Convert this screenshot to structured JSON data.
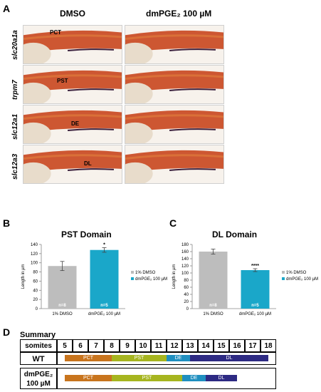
{
  "panelA": {
    "letter": "A",
    "col_dmso": "DMSO",
    "col_dmpge": "dmPGE₂ 100 µM",
    "rows": [
      {
        "gene": "slc20a1a",
        "left_label": "PCT",
        "right_label": ""
      },
      {
        "gene": "trpm7",
        "left_label": "PST",
        "right_label": ""
      },
      {
        "gene": "slc12a1",
        "left_label": "DE",
        "right_label": ""
      },
      {
        "gene": "slc12a3",
        "left_label": "DL",
        "right_label": ""
      }
    ]
  },
  "panelB": {
    "letter": "B",
    "chart_data": {
      "type": "bar",
      "title": "PST Domain",
      "ylabel": "Length in µm",
      "ylim": [
        0,
        140
      ],
      "yticks": [
        0,
        20,
        40,
        60,
        80,
        100,
        120,
        140
      ],
      "categories": [
        "1% DMSO",
        "dmPGE₂ 100 µM"
      ],
      "values": [
        93,
        128
      ],
      "errors": [
        10,
        5
      ],
      "n_labels": [
        "n=8",
        "n=5"
      ],
      "significance": [
        "",
        "*"
      ],
      "colors": [
        "#bdbdbd",
        "#1aa7c9"
      ],
      "legend": [
        "1% DMSO",
        "dmPGE₂ 100 µM"
      ]
    }
  },
  "panelC": {
    "letter": "C",
    "chart_data": {
      "type": "bar",
      "title": "DL Domain",
      "ylabel": "Length in µm",
      "ylim": [
        0,
        180
      ],
      "yticks": [
        0,
        20,
        40,
        60,
        80,
        100,
        120,
        140,
        160,
        180
      ],
      "categories": [
        "1% DMSO",
        "dmPGE₂ 100 µM"
      ],
      "values": [
        160,
        108
      ],
      "errors": [
        7,
        4
      ],
      "n_labels": [
        "n=8",
        "n=5"
      ],
      "significance": [
        "",
        "****"
      ],
      "colors": [
        "#bdbdbd",
        "#1aa7c9"
      ],
      "legend": [
        "1% DMSO",
        "dmPGE₂ 100 µM"
      ]
    }
  },
  "panelD": {
    "letter": "D",
    "title": "Summary",
    "somites_label": "somites",
    "somites": [
      "5",
      "6",
      "7",
      "8",
      "9",
      "10",
      "11",
      "12",
      "13",
      "14",
      "15",
      "16",
      "17",
      "18"
    ],
    "wt_label": "WT",
    "dmpge_label_1": "dmPGE₂",
    "dmpge_label_2": "100 µM",
    "wt_segments": [
      {
        "name": "PCT",
        "from": 5,
        "to": 8.5,
        "color": "#c8741d"
      },
      {
        "name": "PST",
        "from": 8.5,
        "to": 12,
        "color": "#a6b51f"
      },
      {
        "name": "DE",
        "from": 12,
        "to": 13.5,
        "color": "#1f8fc0"
      },
      {
        "name": "DL",
        "from": 13.5,
        "to": 18.5,
        "color": "#2d2a83"
      }
    ],
    "dmpge_segments": [
      {
        "name": "PCT",
        "from": 5,
        "to": 8.5,
        "color": "#c8741d"
      },
      {
        "name": "PST",
        "from": 8.5,
        "to": 13,
        "color": "#a6b51f"
      },
      {
        "name": "DE",
        "from": 13,
        "to": 14.5,
        "color": "#1f8fc0"
      },
      {
        "name": "DL",
        "from": 14.5,
        "to": 16.5,
        "color": "#2d2a83"
      }
    ]
  }
}
